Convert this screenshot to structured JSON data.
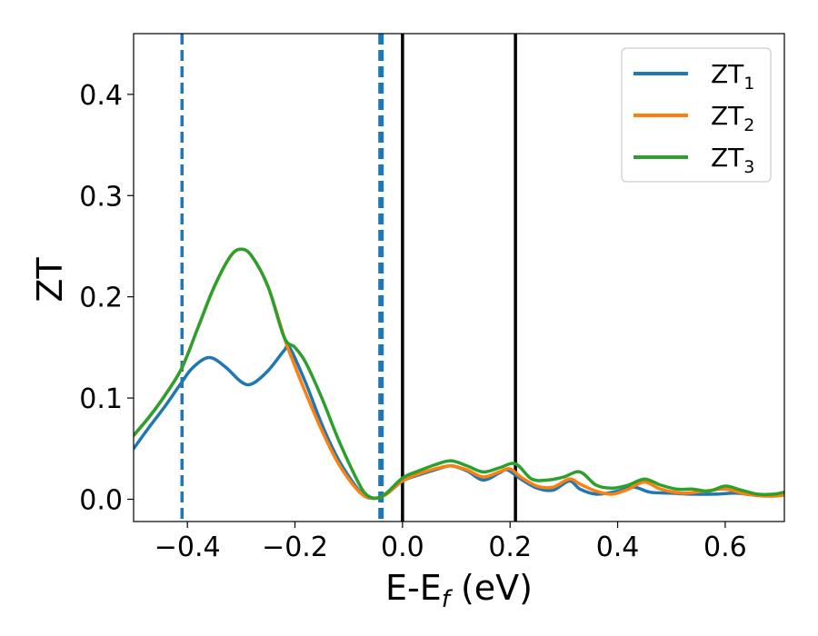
{
  "chart_data": {
    "type": "line",
    "title": "",
    "xlabel": {
      "main": "E-E",
      "sub": "f",
      "unit": " (eV)"
    },
    "ylabel": "ZT",
    "xlim": [
      -0.5,
      0.71
    ],
    "ylim": [
      -0.022,
      0.46
    ],
    "xticks": [
      -0.4,
      -0.2,
      0.0,
      0.2,
      0.4,
      0.6
    ],
    "xtick_labels": [
      "−0.4",
      "−0.2",
      "0.0",
      "0.2",
      "0.4",
      "0.6"
    ],
    "yticks": [
      0.0,
      0.1,
      0.2,
      0.3,
      0.4
    ],
    "ytick_labels": [
      "0.0",
      "0.1",
      "0.2",
      "0.3",
      "0.4"
    ],
    "grid": false,
    "legend_position": "top-right",
    "vlines": [
      {
        "x": -0.41,
        "style": "dashed",
        "color": "#1f77b4"
      },
      {
        "x": -0.04,
        "style": "dashed",
        "color": "#1f77b4"
      },
      {
        "x": 0.0,
        "style": "solid",
        "color": "#000000"
      },
      {
        "x": 0.21,
        "style": "solid",
        "color": "#000000"
      }
    ],
    "series": [
      {
        "name": "ZT",
        "subscript": "1",
        "color": "#1f77b4",
        "points": [
          [
            -0.5,
            0.05
          ],
          [
            -0.47,
            0.072
          ],
          [
            -0.44,
            0.093
          ],
          [
            -0.41,
            0.116
          ],
          [
            -0.39,
            0.13
          ],
          [
            -0.36,
            0.14
          ],
          [
            -0.33,
            0.131
          ],
          [
            -0.3,
            0.116
          ],
          [
            -0.28,
            0.114
          ],
          [
            -0.25,
            0.127
          ],
          [
            -0.22,
            0.147
          ],
          [
            -0.21,
            0.15
          ],
          [
            -0.18,
            0.115
          ],
          [
            -0.15,
            0.074
          ],
          [
            -0.12,
            0.04
          ],
          [
            -0.09,
            0.015
          ],
          [
            -0.07,
            0.003
          ],
          [
            -0.05,
            0.001
          ],
          [
            -0.03,
            0.005
          ],
          [
            0.0,
            0.018
          ],
          [
            0.03,
            0.024
          ],
          [
            0.06,
            0.029
          ],
          [
            0.09,
            0.033
          ],
          [
            0.12,
            0.028
          ],
          [
            0.15,
            0.019
          ],
          [
            0.18,
            0.026
          ],
          [
            0.195,
            0.029
          ],
          [
            0.22,
            0.02
          ],
          [
            0.25,
            0.011
          ],
          [
            0.28,
            0.009
          ],
          [
            0.31,
            0.018
          ],
          [
            0.33,
            0.01
          ],
          [
            0.36,
            0.005
          ],
          [
            0.4,
            0.008
          ],
          [
            0.43,
            0.012
          ],
          [
            0.46,
            0.007
          ],
          [
            0.5,
            0.006
          ],
          [
            0.54,
            0.005
          ],
          [
            0.58,
            0.005
          ],
          [
            0.62,
            0.006
          ],
          [
            0.66,
            0.004
          ],
          [
            0.71,
            0.005
          ]
        ]
      },
      {
        "name": "ZT",
        "subscript": "2",
        "color": "#ff7f0e",
        "points": [
          [
            -0.5,
            0.063
          ],
          [
            -0.47,
            0.082
          ],
          [
            -0.44,
            0.104
          ],
          [
            -0.41,
            0.13
          ],
          [
            -0.38,
            0.17
          ],
          [
            -0.35,
            0.21
          ],
          [
            -0.32,
            0.24
          ],
          [
            -0.3,
            0.247
          ],
          [
            -0.28,
            0.24
          ],
          [
            -0.25,
            0.21
          ],
          [
            -0.22,
            0.16
          ],
          [
            -0.21,
            0.145
          ],
          [
            -0.18,
            0.105
          ],
          [
            -0.15,
            0.068
          ],
          [
            -0.12,
            0.036
          ],
          [
            -0.09,
            0.013
          ],
          [
            -0.07,
            0.003
          ],
          [
            -0.05,
            0.001
          ],
          [
            -0.03,
            0.005
          ],
          [
            0.0,
            0.018
          ],
          [
            0.03,
            0.025
          ],
          [
            0.06,
            0.03
          ],
          [
            0.09,
            0.033
          ],
          [
            0.12,
            0.029
          ],
          [
            0.15,
            0.022
          ],
          [
            0.18,
            0.027
          ],
          [
            0.2,
            0.03
          ],
          [
            0.22,
            0.022
          ],
          [
            0.25,
            0.013
          ],
          [
            0.28,
            0.012
          ],
          [
            0.31,
            0.02
          ],
          [
            0.33,
            0.015
          ],
          [
            0.36,
            0.008
          ],
          [
            0.39,
            0.005
          ],
          [
            0.42,
            0.01
          ],
          [
            0.45,
            0.017
          ],
          [
            0.48,
            0.01
          ],
          [
            0.52,
            0.006
          ],
          [
            0.56,
            0.008
          ],
          [
            0.6,
            0.01
          ],
          [
            0.64,
            0.005
          ],
          [
            0.68,
            0.003
          ],
          [
            0.71,
            0.004
          ]
        ]
      },
      {
        "name": "ZT",
        "subscript": "3",
        "color": "#2ca02c",
        "points": [
          [
            -0.5,
            0.063
          ],
          [
            -0.47,
            0.082
          ],
          [
            -0.44,
            0.104
          ],
          [
            -0.41,
            0.13
          ],
          [
            -0.38,
            0.17
          ],
          [
            -0.35,
            0.21
          ],
          [
            -0.32,
            0.24
          ],
          [
            -0.3,
            0.247
          ],
          [
            -0.28,
            0.24
          ],
          [
            -0.25,
            0.21
          ],
          [
            -0.22,
            0.16
          ],
          [
            -0.2,
            0.15
          ],
          [
            -0.18,
            0.135
          ],
          [
            -0.15,
            0.1
          ],
          [
            -0.12,
            0.06
          ],
          [
            -0.09,
            0.025
          ],
          [
            -0.07,
            0.006
          ],
          [
            -0.05,
            0.001
          ],
          [
            -0.03,
            0.006
          ],
          [
            0.0,
            0.021
          ],
          [
            0.03,
            0.028
          ],
          [
            0.06,
            0.034
          ],
          [
            0.09,
            0.038
          ],
          [
            0.12,
            0.033
          ],
          [
            0.15,
            0.027
          ],
          [
            0.18,
            0.031
          ],
          [
            0.21,
            0.035
          ],
          [
            0.24,
            0.02
          ],
          [
            0.27,
            0.019
          ],
          [
            0.3,
            0.022
          ],
          [
            0.33,
            0.027
          ],
          [
            0.36,
            0.014
          ],
          [
            0.39,
            0.011
          ],
          [
            0.42,
            0.014
          ],
          [
            0.45,
            0.02
          ],
          [
            0.48,
            0.014
          ],
          [
            0.51,
            0.01
          ],
          [
            0.54,
            0.01
          ],
          [
            0.57,
            0.008
          ],
          [
            0.6,
            0.013
          ],
          [
            0.63,
            0.009
          ],
          [
            0.66,
            0.005
          ],
          [
            0.69,
            0.005
          ],
          [
            0.71,
            0.007
          ]
        ]
      }
    ]
  }
}
